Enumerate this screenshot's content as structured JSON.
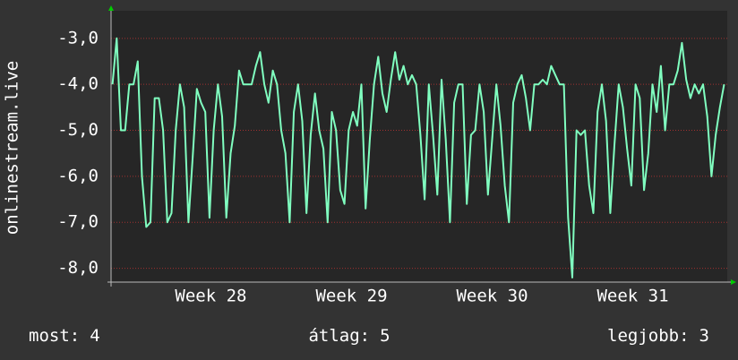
{
  "chart_data": {
    "type": "line",
    "ylabel": "onlinestream.live",
    "xlim": [
      27.29,
      31.672
    ],
    "ylim": [
      -8.3,
      -2.4
    ],
    "xticks": [
      {
        "value": 28,
        "label": "Week 28"
      },
      {
        "value": 29,
        "label": "Week 29"
      },
      {
        "value": 30,
        "label": "Week 30"
      },
      {
        "value": 31,
        "label": "Week 31"
      }
    ],
    "yticks": [
      {
        "value": -3,
        "label": "-3,0"
      },
      {
        "value": -4,
        "label": "-4,0"
      },
      {
        "value": -5,
        "label": "-5,0"
      },
      {
        "value": -6,
        "label": "-6,0"
      },
      {
        "value": -7,
        "label": "-7,0"
      },
      {
        "value": -8,
        "label": "-8,0"
      }
    ],
    "grid": true,
    "series": [
      {
        "color": "#80ffc0",
        "x": [
          27.3,
          27.33,
          27.36,
          27.39,
          27.42,
          27.45,
          27.48,
          27.51,
          27.54,
          27.57,
          27.6,
          27.63,
          27.66,
          27.69,
          27.72,
          27.75,
          27.78,
          27.81,
          27.84,
          27.87,
          27.9,
          27.93,
          27.96,
          27.99,
          28.02,
          28.05,
          28.08,
          28.11,
          28.14,
          28.17,
          28.2,
          28.23,
          28.26,
          28.29,
          28.32,
          28.35,
          28.38,
          28.41,
          28.44,
          28.47,
          28.5,
          28.53,
          28.56,
          28.59,
          28.62,
          28.65,
          28.68,
          28.71,
          28.74,
          28.77,
          28.8,
          28.83,
          28.86,
          28.89,
          28.92,
          28.95,
          28.98,
          29.01,
          29.04,
          29.07,
          29.1,
          29.13,
          29.16,
          29.19,
          29.22,
          29.25,
          29.28,
          29.31,
          29.34,
          29.37,
          29.4,
          29.43,
          29.46,
          29.49,
          29.52,
          29.55,
          29.58,
          29.61,
          29.64,
          29.67,
          29.7,
          29.73,
          29.76,
          29.79,
          29.82,
          29.85,
          29.88,
          29.91,
          29.94,
          29.97,
          30.0,
          30.03,
          30.06,
          30.09,
          30.12,
          30.15,
          30.18,
          30.21,
          30.24,
          30.27,
          30.3,
          30.33,
          30.36,
          30.39,
          30.42,
          30.45,
          30.48,
          30.51,
          30.54,
          30.57,
          30.6,
          30.63,
          30.66,
          30.69,
          30.72,
          30.75,
          30.78,
          30.81,
          30.84,
          30.87,
          30.9,
          30.93,
          30.96,
          30.99,
          31.02,
          31.05,
          31.08,
          31.11,
          31.14,
          31.17,
          31.2,
          31.23,
          31.26,
          31.29,
          31.32,
          31.35,
          31.38,
          31.41,
          31.44,
          31.47,
          31.5,
          31.53,
          31.56,
          31.59,
          31.62,
          31.65
        ],
        "values": [
          -4,
          -3.0,
          -5,
          -5,
          -4,
          -4,
          -3.5,
          -6,
          -7.1,
          -7,
          -4.3,
          -4.3,
          -5,
          -7,
          -6.8,
          -5,
          -4,
          -4.5,
          -7,
          -5.6,
          -4.1,
          -4.4,
          -4.6,
          -6.9,
          -5,
          -4,
          -4.7,
          -6.9,
          -5.5,
          -4.9,
          -3.7,
          -4,
          -4,
          -4,
          -3.6,
          -3.3,
          -4,
          -4.4,
          -3.7,
          -4,
          -5,
          -5.5,
          -7,
          -4.6,
          -4,
          -4.8,
          -6.8,
          -5.1,
          -4.2,
          -5,
          -5.4,
          -7,
          -4.6,
          -5,
          -6.3,
          -6.6,
          -5,
          -4.6,
          -4.9,
          -4,
          -6.7,
          -5.2,
          -4,
          -3.4,
          -4.2,
          -4.6,
          -3.9,
          -3.3,
          -3.9,
          -3.6,
          -4,
          -3.8,
          -4,
          -5.1,
          -6.5,
          -4,
          -5.1,
          -6.4,
          -3.9,
          -5.2,
          -7,
          -4.4,
          -4,
          -4,
          -6.6,
          -5.1,
          -5,
          -4,
          -4.6,
          -6.4,
          -5.2,
          -4,
          -4.9,
          -6.2,
          -7,
          -4.4,
          -4,
          -3.8,
          -4.3,
          -5,
          -4,
          -4,
          -3.9,
          -4,
          -3.6,
          -3.8,
          -4,
          -4,
          -6.9,
          -8.2,
          -5,
          -5.1,
          -5,
          -6.2,
          -6.8,
          -4.6,
          -4,
          -4.8,
          -6.8,
          -5.3,
          -4,
          -4.5,
          -5.4,
          -6.2,
          -4,
          -4.3,
          -6.3,
          -5.5,
          -4,
          -4.6,
          -3.6,
          -5,
          -4,
          -4,
          -3.7,
          -3.1,
          -3.9,
          -4.3,
          -4,
          -4.2,
          -4,
          -4.7,
          -6,
          -5.1,
          -4.5,
          -4
        ]
      }
    ],
    "stats": [
      {
        "label": "most:",
        "value": 4
      },
      {
        "label": "átlag:",
        "value": 5
      },
      {
        "label": "legjobb:",
        "value": 3
      }
    ]
  }
}
